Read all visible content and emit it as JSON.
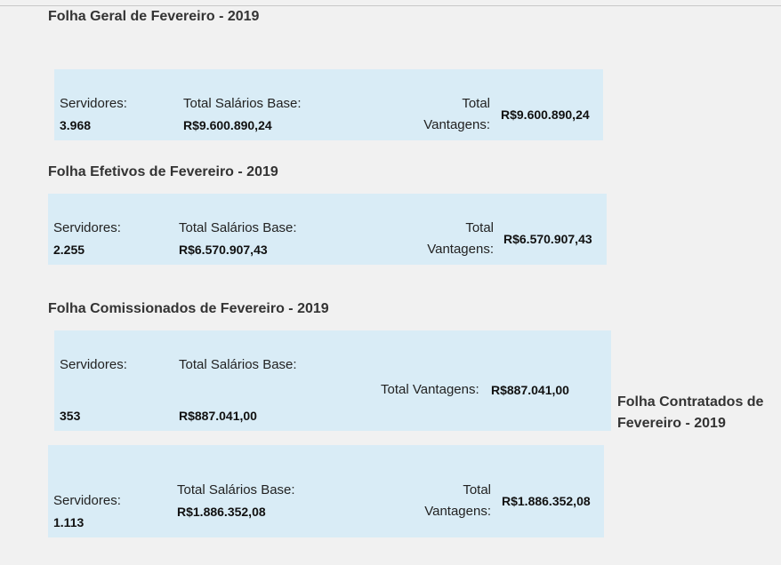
{
  "sections": {
    "geral": {
      "heading": "Folha Geral de Fevereiro - 2019",
      "servidores_label": "Servidores:",
      "servidores_value": "3.968",
      "salarios_label": "Total Salários Base:",
      "salarios_value": "R$9.600.890,24",
      "vantagens_label_1": "Total",
      "vantagens_label_2": "Vantagens:",
      "vantagens_value": "R$9.600.890,24"
    },
    "efetivos": {
      "heading": "Folha Efetivos de Fevereiro - 2019",
      "servidores_label": "Servidores:",
      "servidores_value": "2.255",
      "salarios_label": "Total Salários Base:",
      "salarios_value": "R$6.570.907,43",
      "vantagens_label_1": "Total",
      "vantagens_label_2": "Vantagens:",
      "vantagens_value": "R$6.570.907,43"
    },
    "comissionados": {
      "heading": "Folha Comissionados de Fevereiro - 2019",
      "servidores_label": "Servidores:",
      "servidores_value": "353",
      "salarios_label": "Total Salários Base:",
      "salarios_value": "R$887.041,00",
      "vantagens_label": "Total Vantagens:",
      "vantagens_value": "R$887.041,00"
    },
    "contratados": {
      "heading_1": "Folha Contratados de",
      "heading_2": "Fevereiro - 2019",
      "servidores_label": "Servidores:",
      "servidores_value": "1.113",
      "salarios_label": "Total Salários Base:",
      "salarios_value": "R$1.886.352,08",
      "vantagens_label_1": "Total",
      "vantagens_label_2": "Vantagens:",
      "vantagens_value": "R$1.886.352,08"
    }
  }
}
